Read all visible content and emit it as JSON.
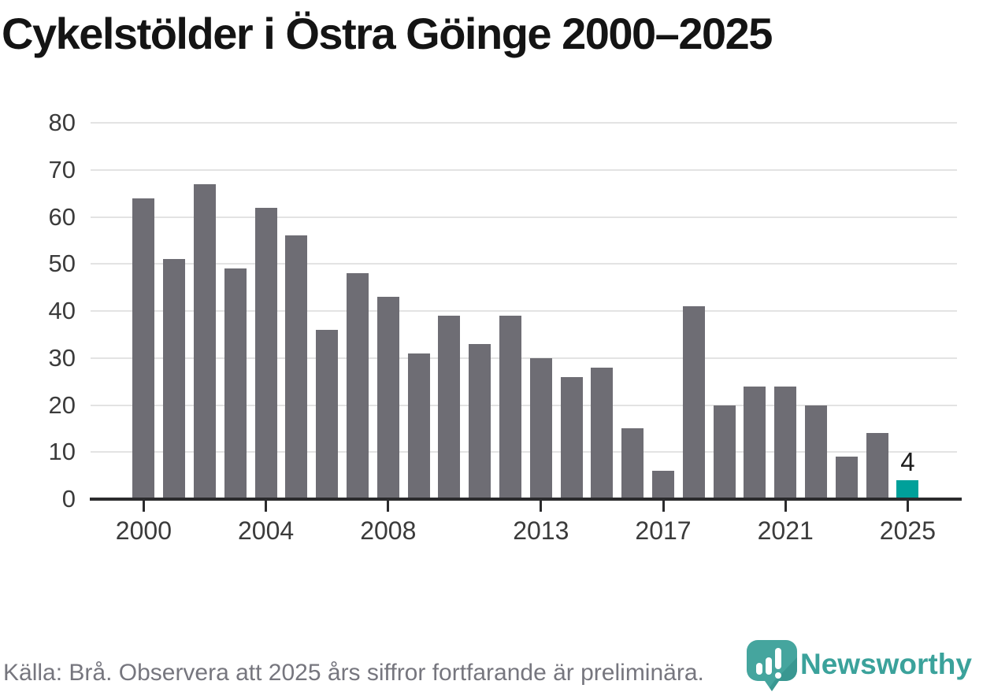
{
  "title": "Cykelstölder i Östra Göinge 2000–2025",
  "source_note": "Källa: Brå. Observera att 2025 års siffror fortfarande är preliminära.",
  "logo": {
    "wordmark": "Newsworthy",
    "icon": "pin-barchart-icon",
    "icon_color": "#45a59e",
    "icon_shade_color": "#2f8d87",
    "wordmark_color": "#3ba29b"
  },
  "colors": {
    "bar": "#6e6d74",
    "highlight_bar": "#00a09a",
    "gridline": "#e3e3e3",
    "axis": "#2b2b2d",
    "tick_label": "#3b3b3b",
    "title": "#141414",
    "source": "#76767e"
  },
  "chart_data": {
    "type": "bar",
    "title": "Cykelstölder i Östra Göinge 2000–2025",
    "x": [
      2000,
      2001,
      2002,
      2003,
      2004,
      2005,
      2006,
      2007,
      2008,
      2009,
      2010,
      2011,
      2012,
      2013,
      2014,
      2015,
      2016,
      2017,
      2018,
      2019,
      2020,
      2021,
      2022,
      2023,
      2024,
      2025
    ],
    "values": [
      64,
      51,
      67,
      49,
      62,
      56,
      36,
      48,
      43,
      31,
      39,
      33,
      39,
      30,
      26,
      28,
      15,
      6,
      41,
      20,
      24,
      24,
      20,
      9,
      14,
      4
    ],
    "highlight_year": 2025,
    "highlight_value_label": "4",
    "x_tick_years": [
      2000,
      2004,
      2008,
      2013,
      2017,
      2021,
      2025
    ],
    "x_tick_labels": [
      "2000",
      "2004",
      "2008",
      "2013",
      "2017",
      "2021",
      "2025"
    ],
    "y_ticks": [
      0,
      10,
      20,
      30,
      40,
      50,
      60,
      70,
      80
    ],
    "ylim": [
      0,
      80
    ],
    "xlabel": "",
    "ylabel": "",
    "grid": true,
    "legend": "none"
  }
}
